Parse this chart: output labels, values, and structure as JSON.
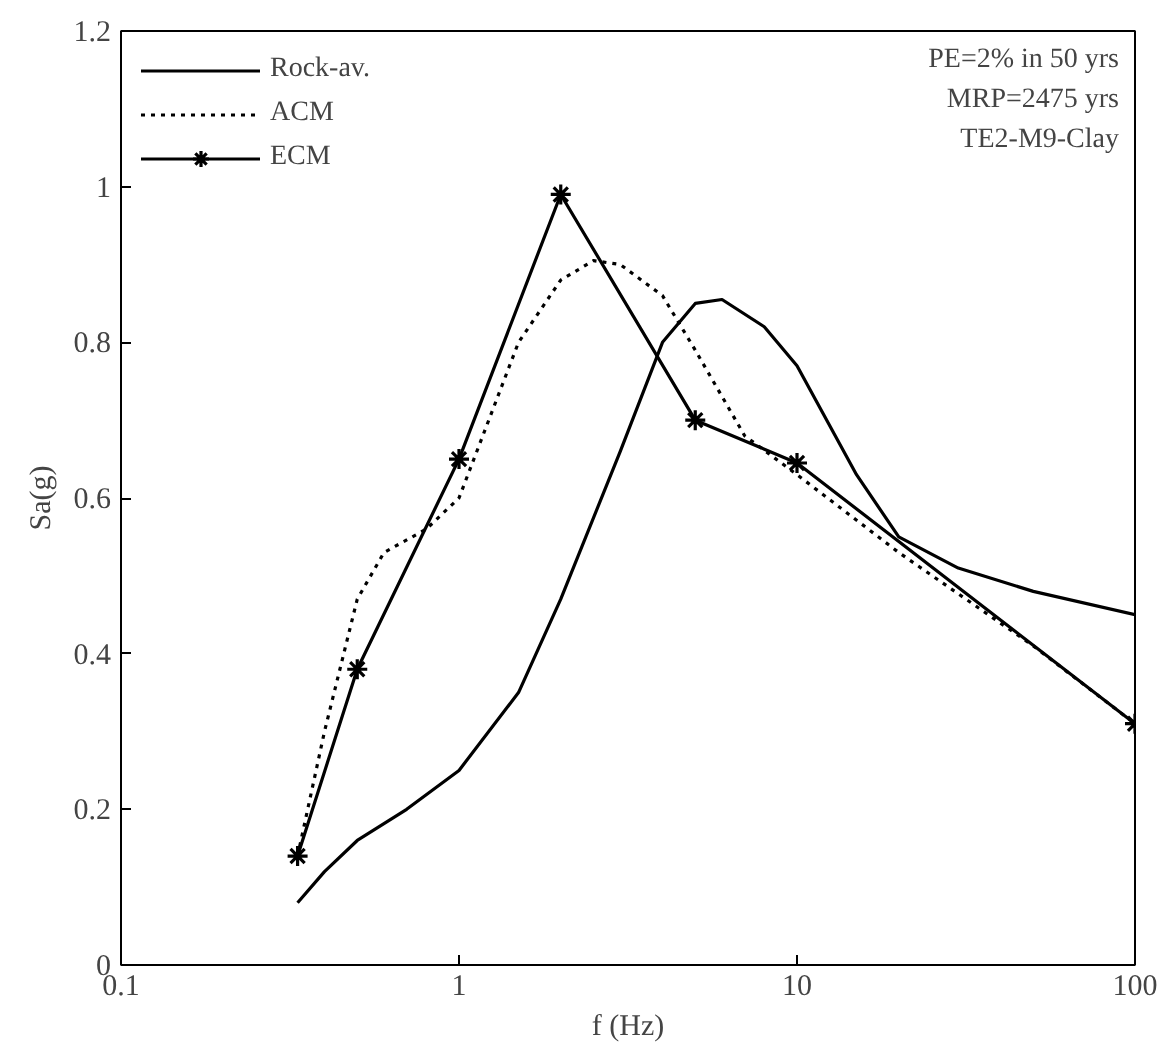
{
  "chart_data": {
    "type": "line",
    "xlabel": "f (Hz)",
    "ylabel": "Sa(g)",
    "log": "x",
    "xlim": [
      0.1,
      100
    ],
    "xticks": [
      0.1,
      1,
      10,
      100
    ],
    "ylim": [
      0,
      1.2
    ],
    "yticks": [
      0,
      0.2,
      0.4,
      0.6,
      0.8,
      1,
      1.2
    ],
    "grid": false,
    "legend": "top left",
    "annotations": [
      "PE=2% in 50 yrs",
      "MRP=2475 yrs",
      "TE2-M9-Clay"
    ],
    "series": [
      {
        "name": "Rock-av.",
        "color": "#000000",
        "line_style": "solid",
        "marker": "none",
        "x": [
          0.333,
          0.4,
          0.5,
          0.7,
          1,
          1.5,
          2,
          3,
          4,
          5,
          6,
          8,
          10,
          15,
          20,
          30,
          50,
          100
        ],
        "values": [
          0.08,
          0.12,
          0.16,
          0.2,
          0.25,
          0.35,
          0.47,
          0.66,
          0.8,
          0.85,
          0.855,
          0.82,
          0.77,
          0.63,
          0.55,
          0.51,
          0.48,
          0.45
        ]
      },
      {
        "name": "ACM",
        "color": "#000000",
        "line_style": "dotted",
        "marker": "none",
        "x": [
          0.333,
          0.4,
          0.5,
          0.6,
          0.8,
          1,
          1.5,
          2,
          2.5,
          3,
          4,
          5,
          7,
          10,
          20,
          50,
          100
        ],
        "values": [
          0.14,
          0.3,
          0.47,
          0.53,
          0.56,
          0.6,
          0.8,
          0.88,
          0.905,
          0.9,
          0.86,
          0.79,
          0.68,
          0.63,
          0.53,
          0.41,
          0.31
        ]
      },
      {
        "name": "ECM",
        "color": "#000000",
        "line_style": "solid",
        "marker": "cross",
        "x": [
          0.333,
          0.5,
          1,
          2,
          5,
          10,
          100
        ],
        "values": [
          0.14,
          0.38,
          0.65,
          0.99,
          0.7,
          0.645,
          0.31
        ]
      }
    ]
  }
}
